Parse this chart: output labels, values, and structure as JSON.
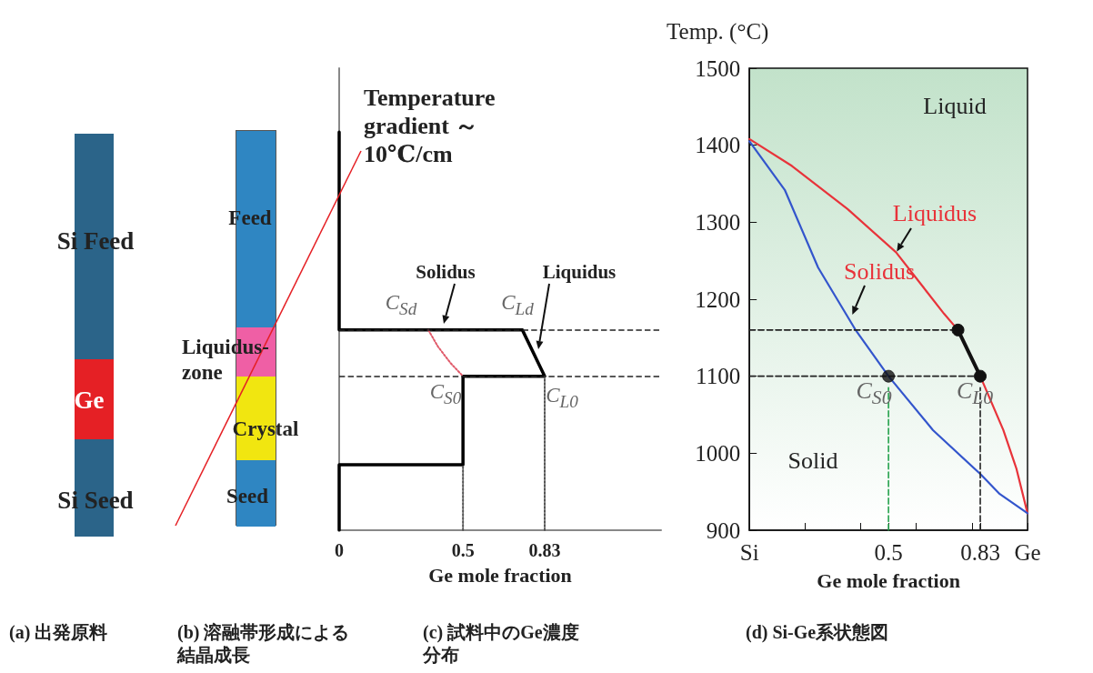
{
  "chart_data": [
    {
      "type": "other",
      "title": "(a) 出発原料",
      "annotations": [
        "Si Feed",
        "Ge",
        "Si Seed"
      ]
    },
    {
      "type": "other",
      "title": "(b) 溶融帯形成による結晶成長",
      "annotations": [
        "Feed",
        "Liquidus-\nzone",
        "Crystal",
        "Seed"
      ]
    },
    {
      "type": "line",
      "title": "(c) 試料中のGe濃度分布",
      "xlabel": "Ge mole fraction",
      "xlim": [
        0,
        1.3
      ],
      "xticks": [
        0,
        0.5,
        0.83
      ],
      "ylim": [
        900,
        1500
      ],
      "tick_labels": "x",
      "line_style": "solid",
      "marker": "none",
      "series": [
        {
          "color": "#000000",
          "x": [
            0,
            0,
            0.5,
            0.5,
            0.83,
            0.74,
            0,
            0
          ],
          "values": [
            900,
            985,
            985,
            1100,
            1100,
            1160,
            1160,
            1417
          ]
        },
        {
          "color": "#e05a6a",
          "line_style": "dotted",
          "x": [
            0.36,
            0.4,
            0.45,
            0.5
          ],
          "values": [
            1160,
            1138,
            1117,
            1100
          ]
        },
        {
          "color": "#555555",
          "line_style": "dotted",
          "x": [
            0.5,
            0.5
          ],
          "values": [
            900,
            985
          ]
        },
        {
          "color": "#555555",
          "line_style": "dotted",
          "x": [
            0.83,
            0.83
          ],
          "values": [
            900,
            1100
          ]
        }
      ],
      "ref_lines": [
        {
          "axis": "y",
          "value": 1160,
          "line_style": "dashed",
          "color": "#222222"
        },
        {
          "axis": "y",
          "value": 1100,
          "line_style": "dashed",
          "color": "#222222"
        }
      ],
      "annotations": [
        "Temperature gradient ～ 10℃/cm",
        "Solidus",
        "Liquidus",
        "C$_{Sd}$",
        "C$_{Ld}$",
        "C$_{S0}$",
        "C$_{L0}$"
      ]
    },
    {
      "type": "line",
      "title": "(d) Si-Ge系状態図",
      "xlabel": "Ge mole fraction",
      "ylabel": "Temp. (°C)",
      "xlim": [
        0,
        1
      ],
      "xticks": [
        {
          "value": 0,
          "label": "Si"
        },
        {
          "value": 0.2,
          "label": null
        },
        {
          "value": 0.4,
          "label": null
        },
        0.5,
        {
          "value": 0.6,
          "label": null
        },
        {
          "value": 0.8,
          "label": null
        },
        0.83,
        {
          "value": 1,
          "label": "Ge"
        }
      ],
      "ylim": [
        900,
        1500
      ],
      "yticks": [
        900,
        1000,
        1100,
        1200,
        1300,
        1400,
        1500
      ],
      "line_style": "solid",
      "marker": "none",
      "series": [
        {
          "color": "#e8333a",
          "x": [
            0,
            0.153,
            0.353,
            0.527,
            0.7,
            0.75,
            0.83,
            0.913,
            0.96,
            1
          ],
          "values": [
            1408,
            1373,
            1317,
            1261,
            1181,
            1160,
            1100,
            1030,
            980,
            922
          ]
        },
        {
          "color": "#3355cc",
          "x": [
            0,
            0.127,
            0.247,
            0.38,
            0.5,
            0.66,
            0.833,
            0.9,
            1
          ],
          "values": [
            1405,
            1342,
            1241,
            1161,
            1100,
            1030,
            972,
            947,
            922
          ]
        },
        {
          "color": "#222222",
          "line_style": "dashed",
          "x": [
            0,
            0.75
          ],
          "values": [
            1160,
            1160
          ]
        },
        {
          "color": "#222222",
          "line_style": "dashed",
          "x": [
            0,
            0.83
          ],
          "values": [
            1100,
            1100
          ]
        },
        {
          "color": "#22a04a",
          "line_style": "dashed",
          "x": [
            0.5,
            0.5
          ],
          "values": [
            900,
            1085
          ]
        },
        {
          "color": "#222222",
          "line_style": "dashed",
          "x": [
            0.83,
            0.83
          ],
          "values": [
            900,
            1085
          ]
        },
        {
          "color": "#111111",
          "marker": "circle",
          "x": [
            0.75,
            0.83
          ],
          "values": [
            1160,
            1100
          ]
        },
        {
          "type": "scatter",
          "color": "#111111",
          "marker": "circle",
          "x": [
            0.5
          ],
          "values": [
            1100
          ]
        }
      ],
      "annotations": [
        "Liquid",
        {
          "text": "Liquidus",
          "x": 0.53,
          "y": 1262
        },
        {
          "text": "Solidus",
          "x": 0.37,
          "y": 1180
        },
        "Solid",
        "C$_{S0}$",
        "C$_{L0}$"
      ]
    }
  ]
}
